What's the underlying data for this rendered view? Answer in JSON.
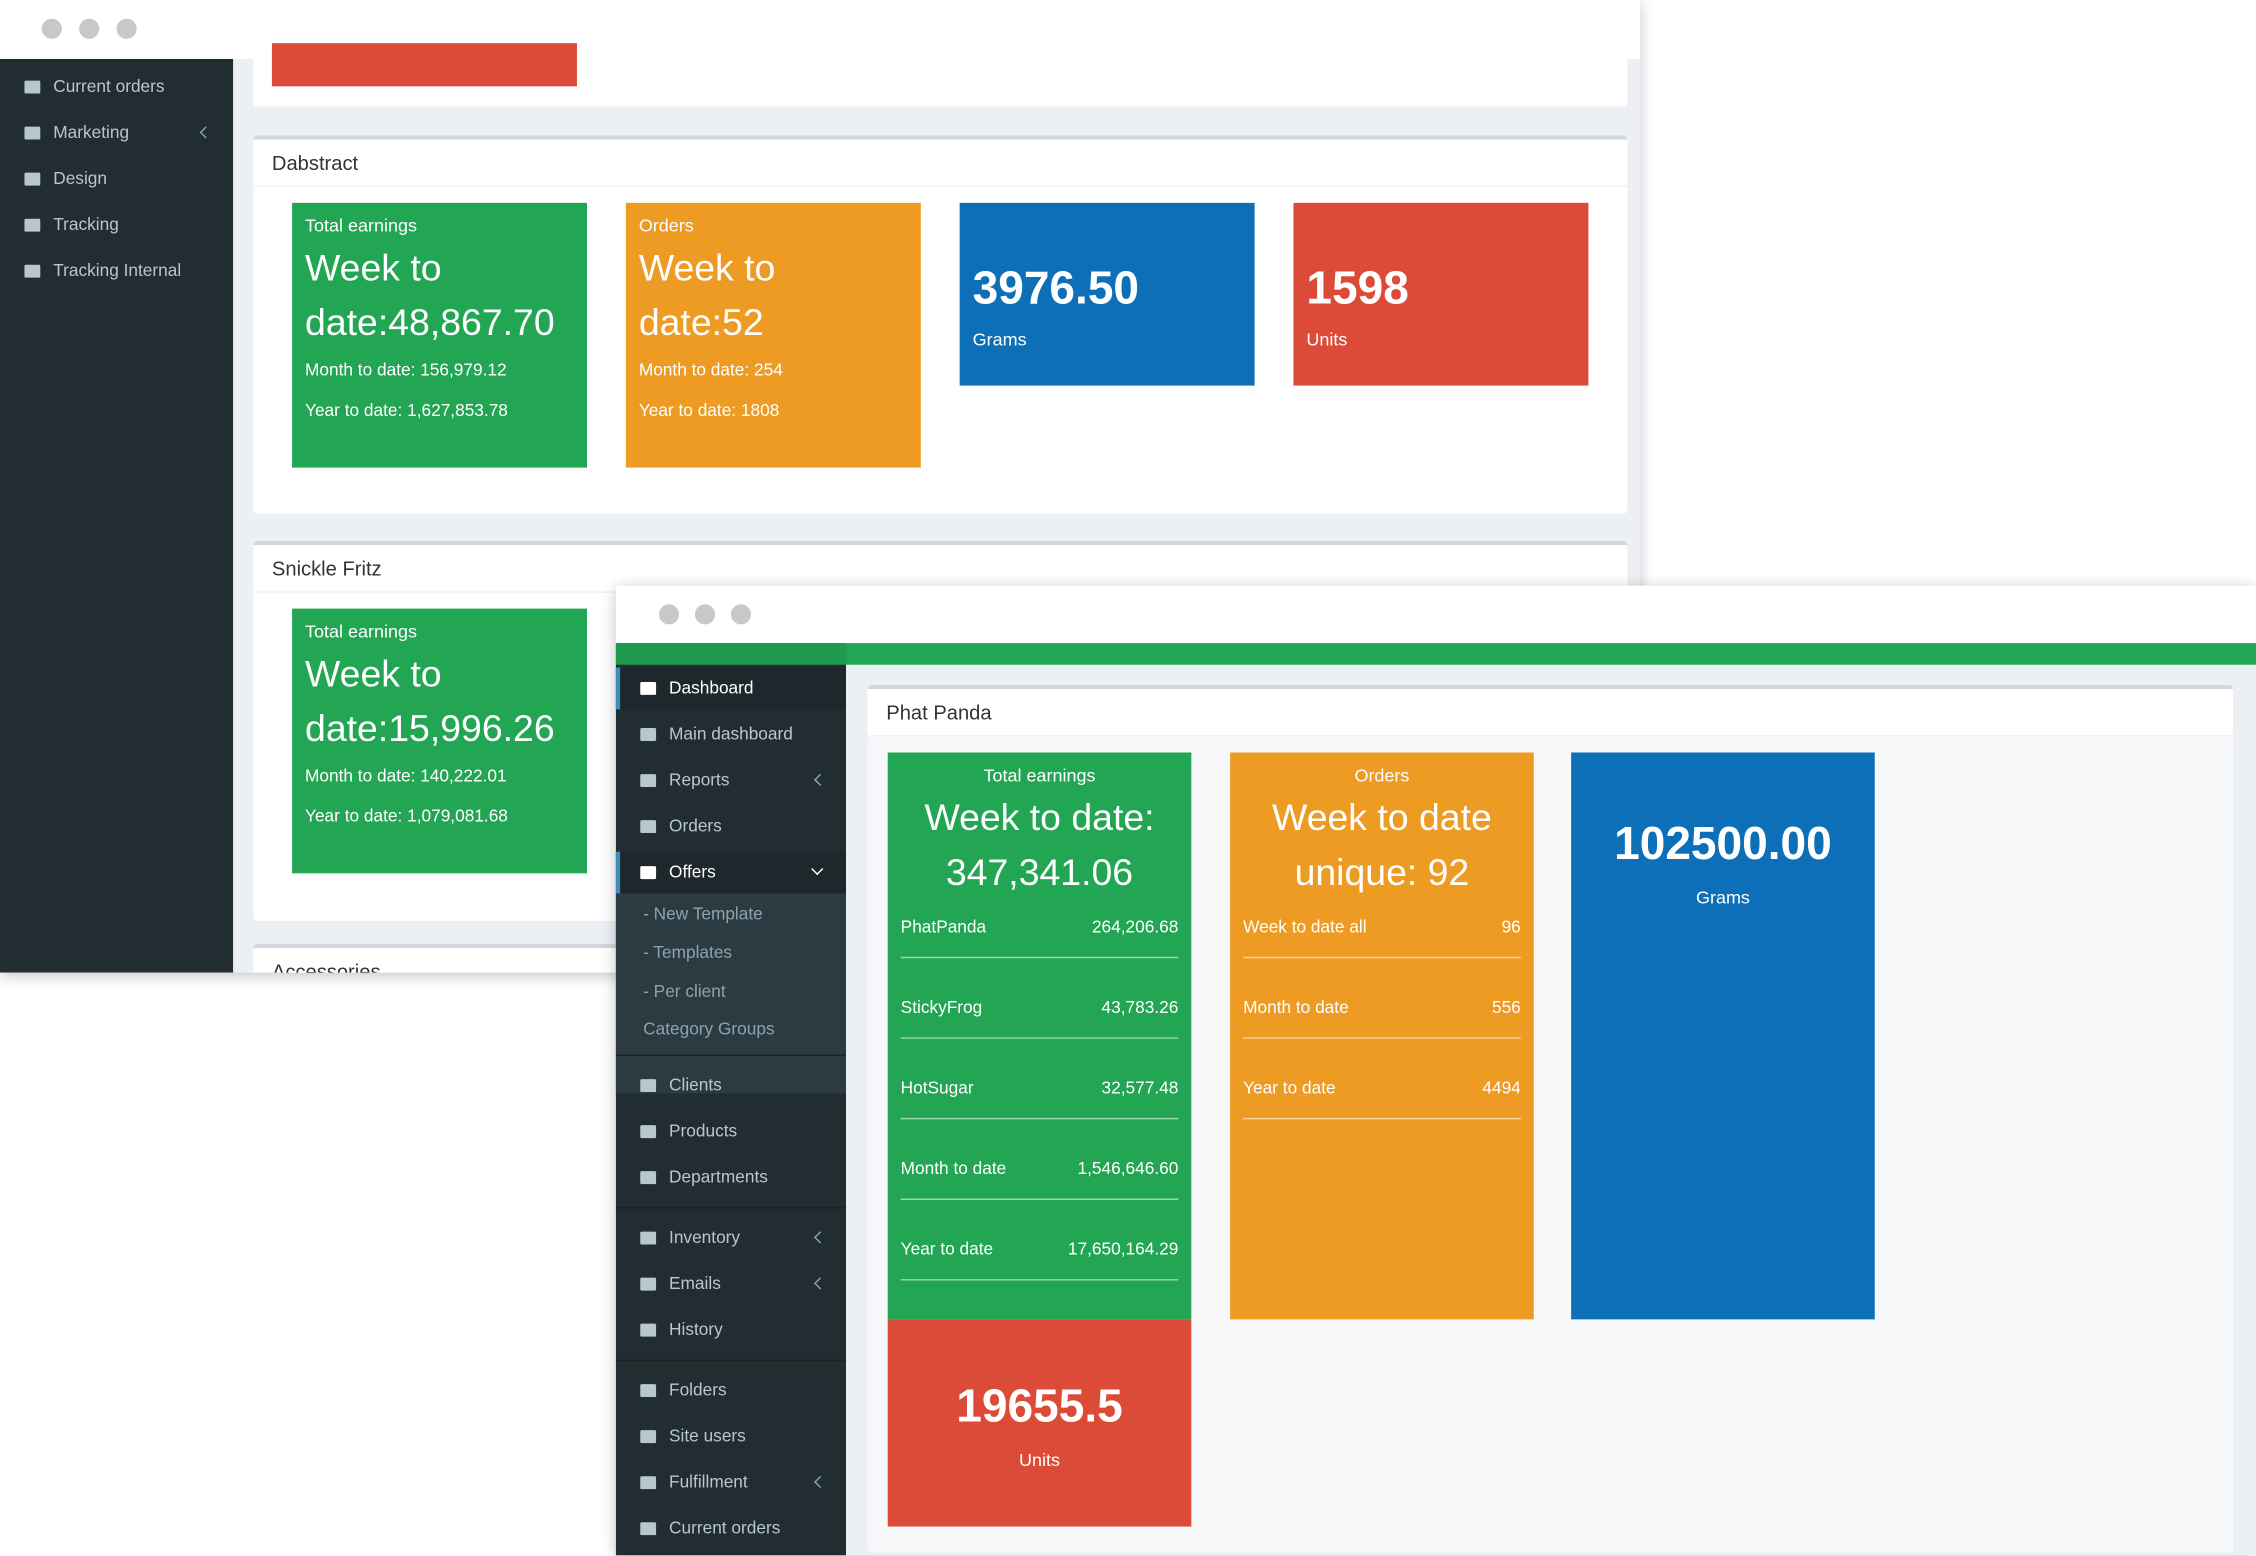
{
  "back_window": {
    "sidebar": [
      "Current orders",
      "Marketing",
      "Design",
      "Tracking",
      "Tracking Internal"
    ],
    "sections": [
      {
        "title": "Dabstract",
        "tiles": [
          {
            "label": "Total earnings",
            "main": "Week to date:48,867.70",
            "lines": [
              "Month to date: 156,979.12",
              "Year to date: 1,627,853.78"
            ]
          },
          {
            "label": "Orders",
            "main": "Week to date:52",
            "lines": [
              "Month to date: 254",
              "Year to date: 1808"
            ]
          },
          {
            "main": "3976.50",
            "label": "Grams"
          },
          {
            "main": "1598",
            "label": "Units"
          }
        ]
      },
      {
        "title": "Snickle Fritz",
        "tiles": [
          {
            "label": "Total earnings",
            "main": "Week to date:15,996.26",
            "lines": [
              "Month to date: 140,222.01",
              "Year to date: 1,079,081.68"
            ]
          }
        ]
      },
      {
        "title": "Accessories",
        "tiles": []
      }
    ]
  },
  "front_window": {
    "sidebar": [
      "Dashboard",
      "Main dashboard",
      "Reports",
      "Orders",
      "Offers",
      "- New Template",
      "- Templates",
      "- Per client",
      "Category Groups",
      "Clients",
      "Products",
      "Departments",
      "Inventory",
      "Emails",
      "History",
      "Folders",
      "Site users",
      "Fulfillment",
      "Current orders"
    ],
    "section": {
      "title": "Phat Panda",
      "tiles": [
        {
          "label": "Total earnings",
          "main": "Week to date: 347,341.06",
          "rows": [
            {
              "name": "PhatPanda",
              "value": "264,206.68"
            },
            {
              "name": "StickyFrog",
              "value": "43,783.26"
            },
            {
              "name": "HotSugar",
              "value": "32,577.48"
            },
            {
              "name": "Month to date",
              "value": "1,546,646.60"
            },
            {
              "name": "Year to date",
              "value": "17,650,164.29"
            }
          ]
        },
        {
          "label": "Orders",
          "main": "Week to date unique: 92",
          "rows": [
            {
              "name": "Week to date all",
              "value": "96"
            },
            {
              "name": "Month to date",
              "value": "556"
            },
            {
              "name": "Year to date",
              "value": "4494"
            }
          ]
        },
        {
          "main": "102500.00",
          "label": "Grams"
        },
        {
          "main": "19655.5",
          "label": "Units"
        }
      ]
    }
  }
}
